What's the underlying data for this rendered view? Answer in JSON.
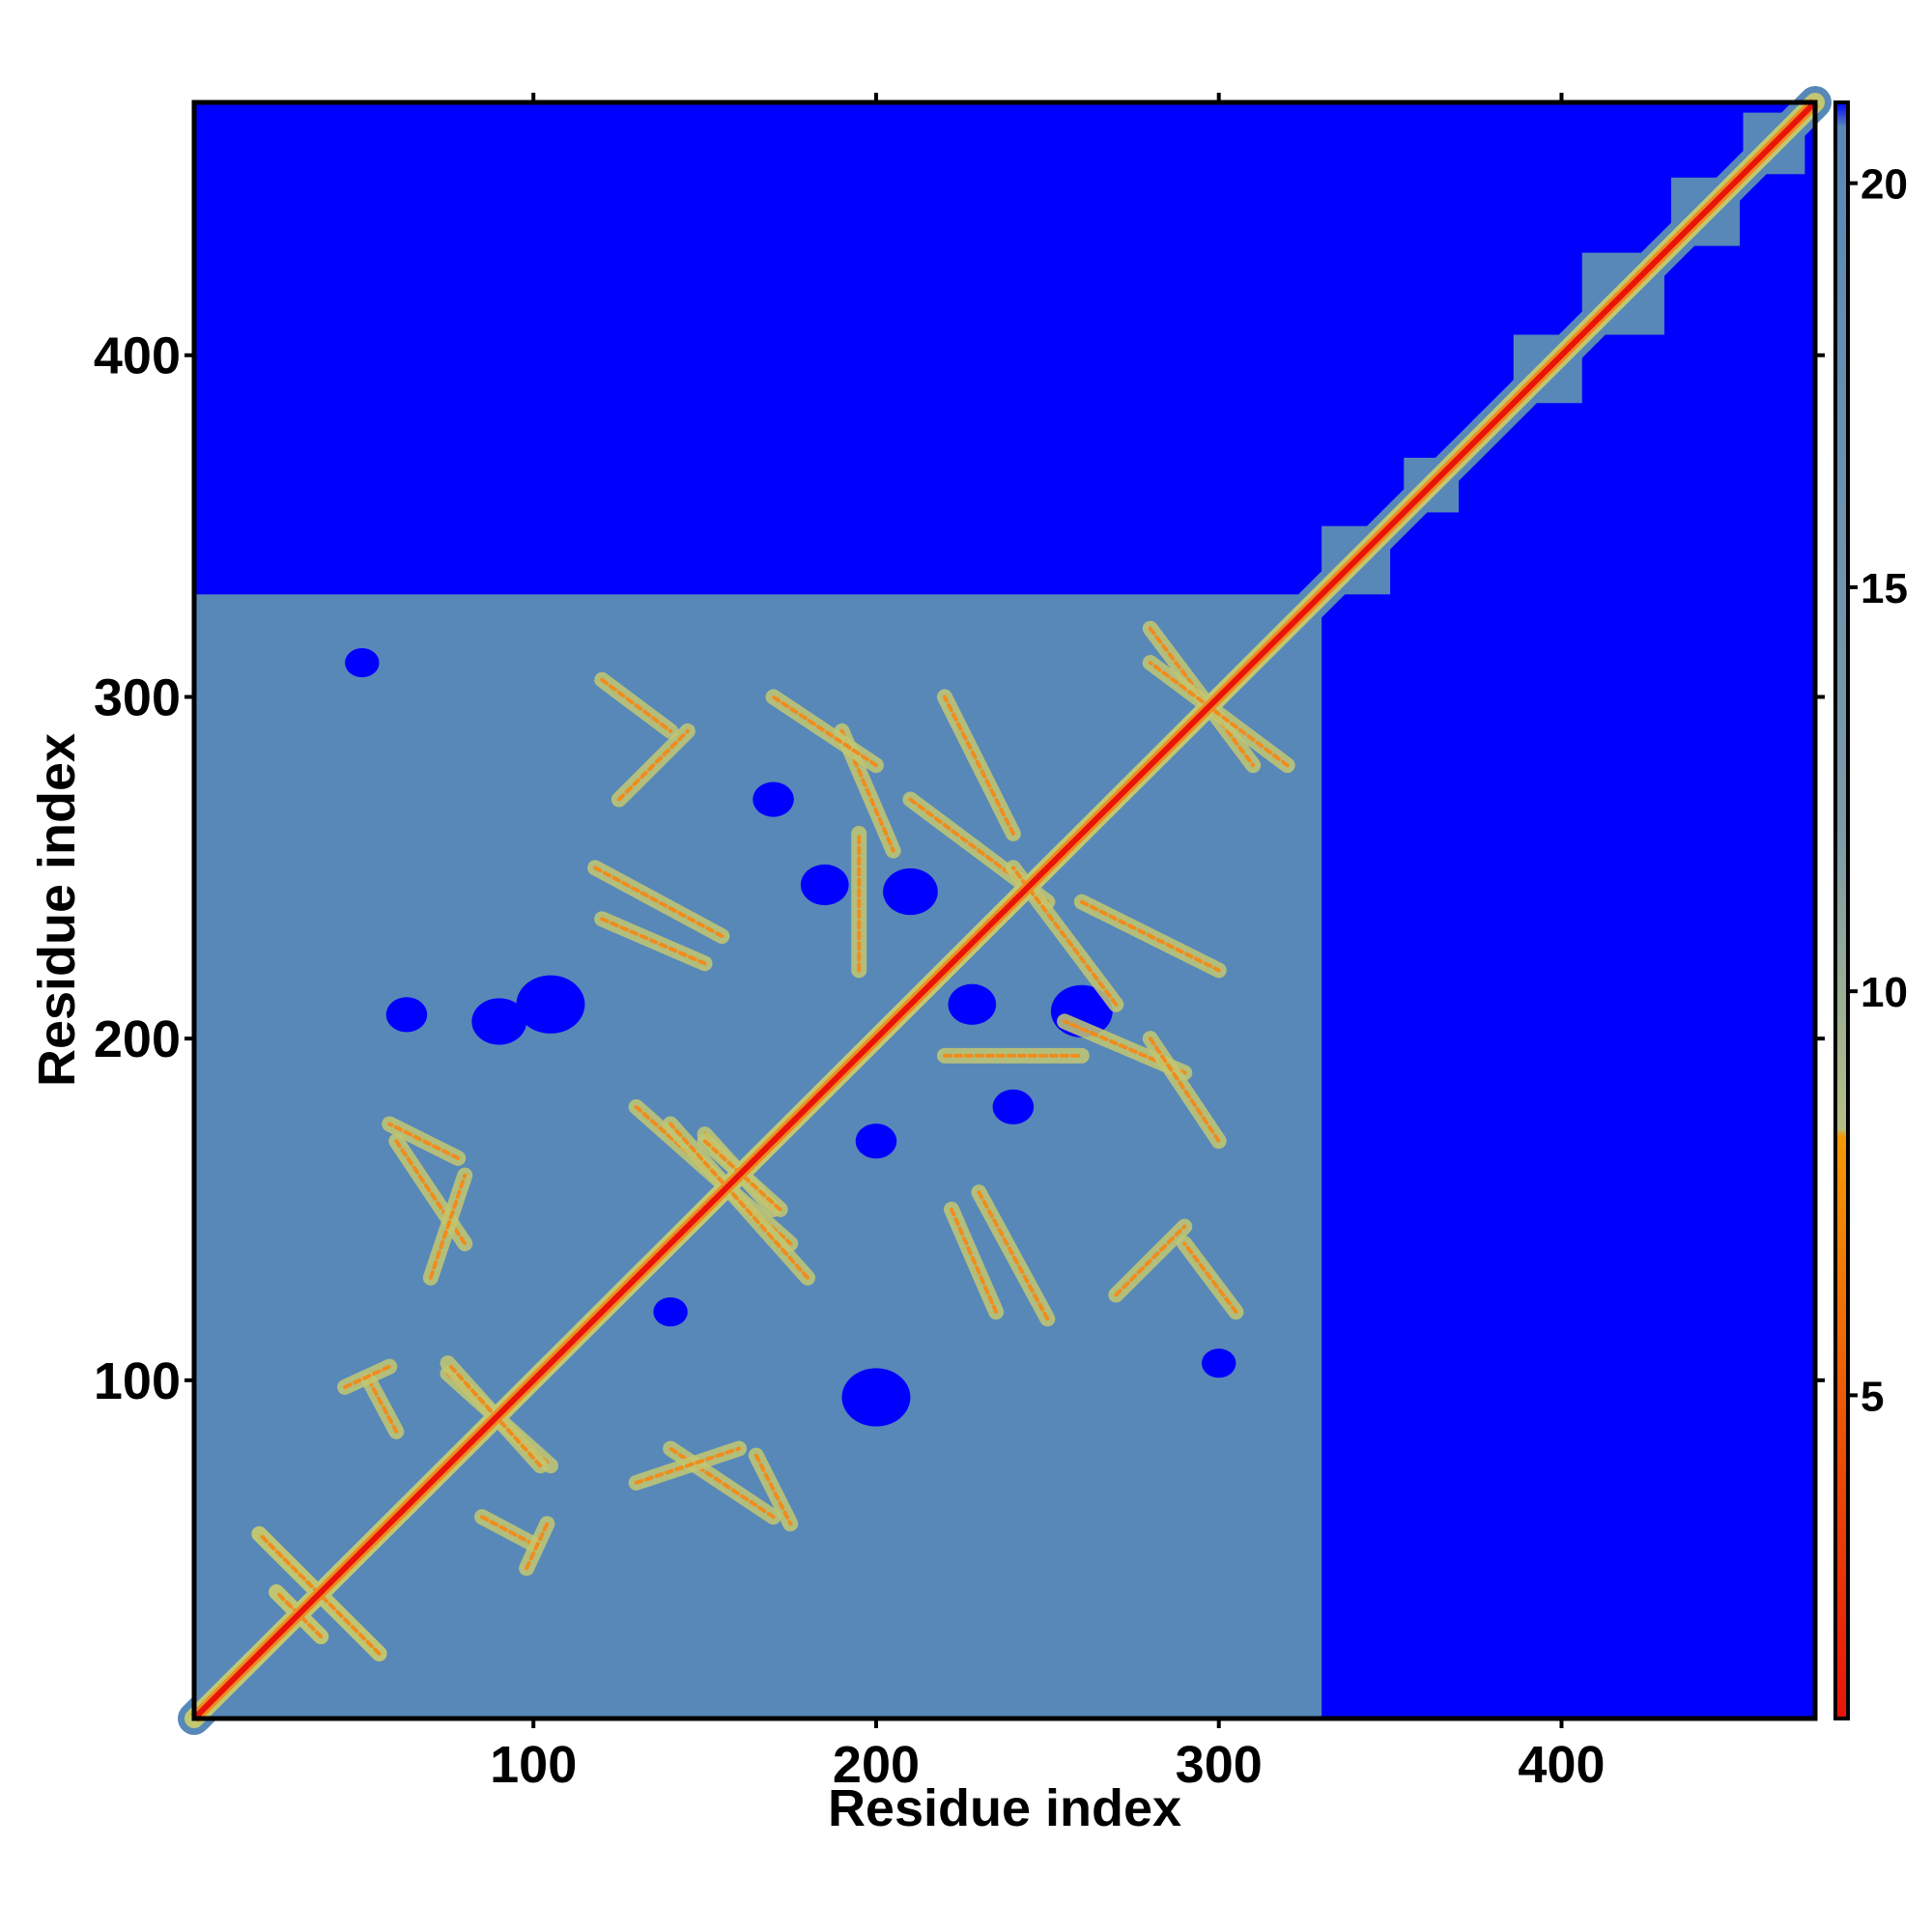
{
  "chart_data": {
    "type": "heatmap",
    "title": "",
    "xlabel": "Residue index",
    "ylabel": "Residue index",
    "xlim": [
      1,
      474
    ],
    "ylim": [
      1,
      474
    ],
    "x_ticks": [
      100,
      200,
      300,
      400
    ],
    "y_ticks": [
      100,
      200,
      300,
      400
    ],
    "grid": false,
    "colorbar": {
      "ticks": [
        5,
        10,
        15,
        20
      ],
      "range": [
        1,
        21
      ],
      "stops": [
        {
          "value": 1,
          "color": "#e8140a"
        },
        {
          "value": 5,
          "color": "#ee5a06"
        },
        {
          "value": 8.2,
          "color": "#f49a04"
        },
        {
          "value": 8.3,
          "color": "#b4be84"
        },
        {
          "value": 12,
          "color": "#7c9aa8"
        },
        {
          "value": 20.7,
          "color": "#5888b8"
        },
        {
          "value": 21,
          "color": "#0000ff"
        }
      ]
    },
    "colors": {
      "far": "#0000ff",
      "mid": "#5888b8",
      "near": "#c2c872",
      "contact": "#f08c1e",
      "diagonal": "#e8140a"
    },
    "structure": {
      "dense_block": [
        1,
        330
      ],
      "diagonal_range": [
        1,
        474
      ],
      "diagonal_domains": [
        {
          "center": 340,
          "halfwidth": 10
        },
        {
          "center": 362,
          "halfwidth": 8
        },
        {
          "center": 396,
          "halfwidth": 10
        },
        {
          "center": 418,
          "halfwidth": 12
        },
        {
          "center": 442,
          "halfwidth": 10
        },
        {
          "center": 462,
          "halfwidth": 9
        }
      ],
      "contact_features": [
        {
          "x": [
            20,
            55
          ],
          "y": [
            55,
            20
          ]
        },
        {
          "x": [
            25,
            38
          ],
          "y": [
            38,
            25
          ]
        },
        {
          "x": [
            75,
            105
          ],
          "y": [
            102,
            75
          ]
        },
        {
          "x": [
            85,
            100
          ],
          "y": [
            60,
            52
          ]
        },
        {
          "x": [
            45,
            58
          ],
          "y": [
            98,
            104
          ]
        },
        {
          "x": [
            130,
            175
          ],
          "y": [
            180,
            140
          ]
        },
        {
          "x": [
            150,
            170
          ],
          "y": [
            172,
            150
          ]
        },
        {
          "x": [
            120,
            150
          ],
          "y": [
            235,
            222
          ]
        },
        {
          "x": [
            190,
            205
          ],
          "y": [
            290,
            255
          ]
        },
        {
          "x": [
            230,
            250
          ],
          "y": [
            155,
            118
          ]
        },
        {
          "x": [
            270,
            290
          ],
          "y": [
            125,
            145
          ]
        },
        {
          "x": [
            260,
            300
          ],
          "y": [
            240,
            220
          ]
        },
        {
          "x": [
            210,
            250
          ],
          "y": [
            270,
            240
          ]
        },
        {
          "x": [
            280,
            310
          ],
          "y": [
            320,
            280
          ]
        },
        {
          "x": [
            60,
            80
          ],
          "y": [
            170,
            140
          ]
        },
        {
          "x": [
            130,
            160
          ],
          "y": [
            70,
            80
          ]
        },
        {
          "x": [
            165,
            175
          ],
          "y": [
            78,
            58
          ]
        },
        {
          "x": [
            120,
            140
          ],
          "y": [
            305,
            290
          ]
        },
        {
          "x": [
            220,
            260
          ],
          "y": [
            195,
            195
          ]
        },
        {
          "x": [
            280,
            300
          ],
          "y": [
            200,
            170
          ]
        }
      ],
      "far_holes": [
        {
          "x": 105,
          "y": 210,
          "r": 10
        },
        {
          "x": 90,
          "y": 205,
          "r": 8
        },
        {
          "x": 63,
          "y": 207,
          "r": 6
        },
        {
          "x": 210,
          "y": 243,
          "r": 8
        },
        {
          "x": 185,
          "y": 245,
          "r": 7
        },
        {
          "x": 200,
          "y": 95,
          "r": 10
        },
        {
          "x": 260,
          "y": 208,
          "r": 9
        },
        {
          "x": 228,
          "y": 210,
          "r": 7
        },
        {
          "x": 200,
          "y": 170,
          "r": 6
        },
        {
          "x": 170,
          "y": 270,
          "r": 6
        },
        {
          "x": 240,
          "y": 180,
          "r": 6
        },
        {
          "x": 140,
          "y": 120,
          "r": 5
        },
        {
          "x": 300,
          "y": 105,
          "r": 5
        },
        {
          "x": 50,
          "y": 310,
          "r": 5
        }
      ]
    }
  }
}
